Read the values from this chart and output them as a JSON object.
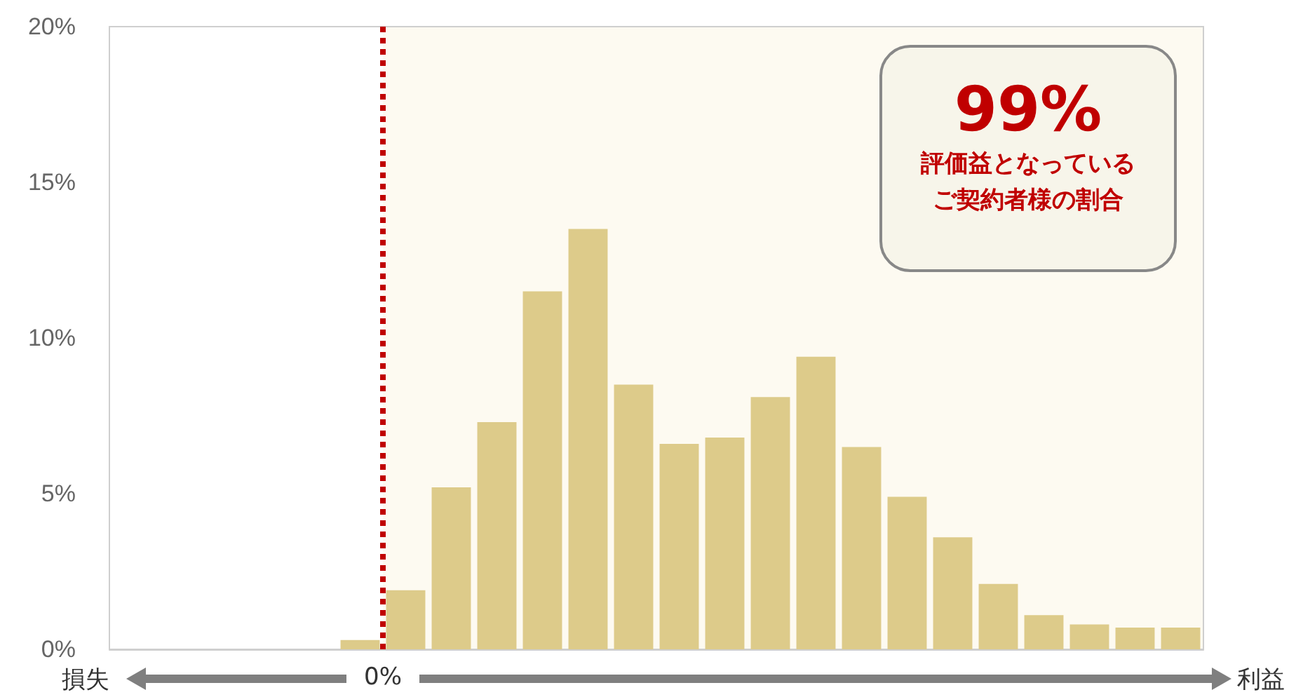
{
  "chart_data": {
    "type": "bar",
    "categories": [
      null,
      null,
      null,
      null,
      null,
      null,
      null,
      null,
      null,
      null,
      null,
      null,
      null,
      null,
      null,
      null,
      null,
      null,
      null,
      null,
      null,
      null,
      null,
      null
    ],
    "values": [
      0,
      0,
      0,
      0,
      0,
      0.3,
      1.9,
      5.2,
      7.3,
      11.5,
      13.5,
      8.5,
      6.6,
      6.8,
      8.1,
      9.4,
      6.5,
      4.9,
      3.6,
      2.1,
      1.1,
      0.8,
      0.7,
      0.7
    ],
    "color": "#ddcb8a",
    "ylim": [
      0,
      20
    ],
    "yticks": [
      {
        "value": 0,
        "label": "0%"
      },
      {
        "value": 5,
        "label": "5%"
      },
      {
        "value": 10,
        "label": "10%"
      },
      {
        "value": 15,
        "label": "15%"
      },
      {
        "value": 20,
        "label": "20%"
      }
    ],
    "grid": false,
    "annotations": [
      "損失",
      "利益",
      "99%",
      "評価益となっている",
      "ご契約者様の割合",
      "0%"
    ]
  }
}
